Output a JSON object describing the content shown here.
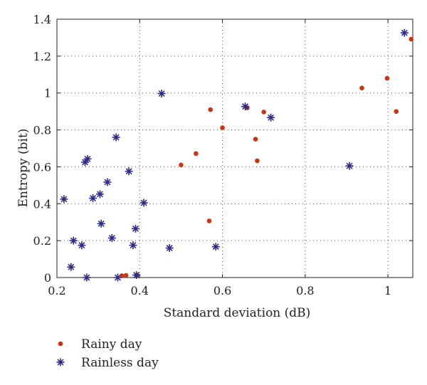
{
  "chart_data": {
    "type": "scatter",
    "xlabel": "Standard deviation (dB)",
    "ylabel": "Entropy (bit)",
    "xlim": [
      0.2,
      1.06
    ],
    "ylim": [
      0,
      1.4
    ],
    "x_ticks": [
      0.2,
      0.4,
      0.6,
      0.8,
      1
    ],
    "y_ticks": [
      0,
      0.2,
      0.4,
      0.6,
      0.8,
      1,
      1.2,
      1.4
    ],
    "x_tick_labels": [
      "0.2",
      "0.4",
      "0.6",
      "0.8",
      "1"
    ],
    "y_tick_labels": [
      "0",
      "0.2",
      "0.4",
      "0.6",
      "0.8",
      "1",
      "1.2",
      "1.4"
    ],
    "grid": "dotted",
    "legend_position": "bottom-left",
    "series": [
      {
        "name": "Rainy day",
        "marker": "dot",
        "color": "#cc3311",
        "points": [
          [
            0.357,
            0.01
          ],
          [
            0.367,
            0.012
          ],
          [
            0.393,
            0.013
          ],
          [
            0.5,
            0.61
          ],
          [
            0.536,
            0.672
          ],
          [
            0.568,
            0.307
          ],
          [
            0.571,
            0.91
          ],
          [
            0.6,
            0.812
          ],
          [
            0.66,
            0.92
          ],
          [
            0.68,
            0.75
          ],
          [
            0.684,
            0.633
          ],
          [
            0.7,
            0.897
          ],
          [
            0.937,
            1.027
          ],
          [
            0.998,
            1.08
          ],
          [
            1.02,
            0.9
          ],
          [
            1.056,
            1.292
          ]
        ]
      },
      {
        "name": "Rainless day",
        "marker": "star",
        "color": "#2a2a8a",
        "points": [
          [
            0.217,
            0.425
          ],
          [
            0.234,
            0.057
          ],
          [
            0.24,
            0.2
          ],
          [
            0.26,
            0.175
          ],
          [
            0.268,
            0.625
          ],
          [
            0.272,
            0.0
          ],
          [
            0.274,
            0.643
          ],
          [
            0.287,
            0.43
          ],
          [
            0.304,
            0.452
          ],
          [
            0.307,
            0.292
          ],
          [
            0.322,
            0.517
          ],
          [
            0.333,
            0.214
          ],
          [
            0.343,
            0.76
          ],
          [
            0.347,
            0.0
          ],
          [
            0.374,
            0.576
          ],
          [
            0.384,
            0.175
          ],
          [
            0.39,
            0.265
          ],
          [
            0.392,
            0.013
          ],
          [
            0.41,
            0.405
          ],
          [
            0.453,
            0.997
          ],
          [
            0.472,
            0.16
          ],
          [
            0.584,
            0.167
          ],
          [
            0.655,
            0.927
          ],
          [
            0.717,
            0.867
          ],
          [
            0.907,
            0.605
          ],
          [
            1.04,
            1.326
          ]
        ]
      }
    ]
  }
}
